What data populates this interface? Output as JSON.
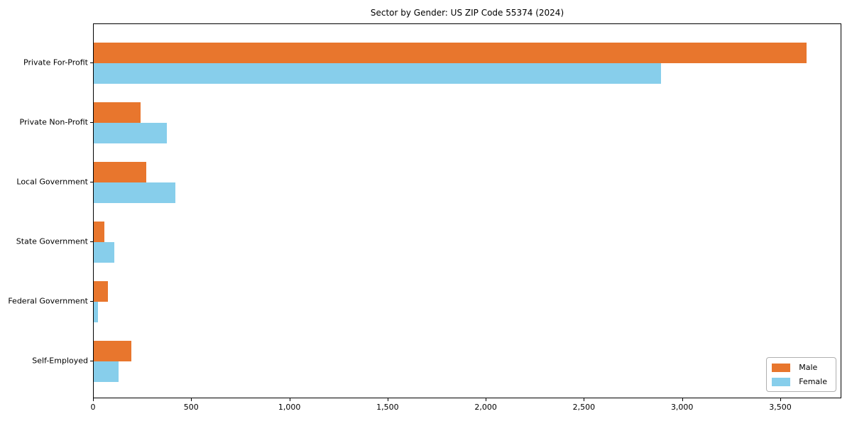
{
  "figure": {
    "background": "#ffffff",
    "frame_color": "#000000"
  },
  "chart_data": {
    "type": "bar",
    "orientation": "horizontal",
    "title": "Sector by Gender: US ZIP Code 55374 (2024)",
    "categories": [
      "Private For-Profit",
      "Private Non-Profit",
      "Local Government",
      "State Government",
      "Federal Government",
      "Self-Employed"
    ],
    "series": [
      {
        "name": "Male",
        "color": "#e8762d",
        "values": [
          3630,
          238,
          266,
          54,
          71,
          191
        ]
      },
      {
        "name": "Female",
        "color": "#87ceeb",
        "values": [
          2890,
          374,
          414,
          106,
          20,
          127
        ]
      }
    ],
    "xlabel": "",
    "ylabel": "",
    "xlim": [
      0,
      3811
    ],
    "xticks": [
      0,
      500,
      1000,
      1500,
      2000,
      2500,
      3000,
      3500
    ],
    "xtick_labels": [
      "0",
      "500",
      "1,000",
      "1,500",
      "2,000",
      "2,500",
      "3,000",
      "3,500"
    ],
    "grid": false,
    "legend": {
      "position": "lower-right",
      "entries": [
        "Male",
        "Female"
      ]
    }
  }
}
